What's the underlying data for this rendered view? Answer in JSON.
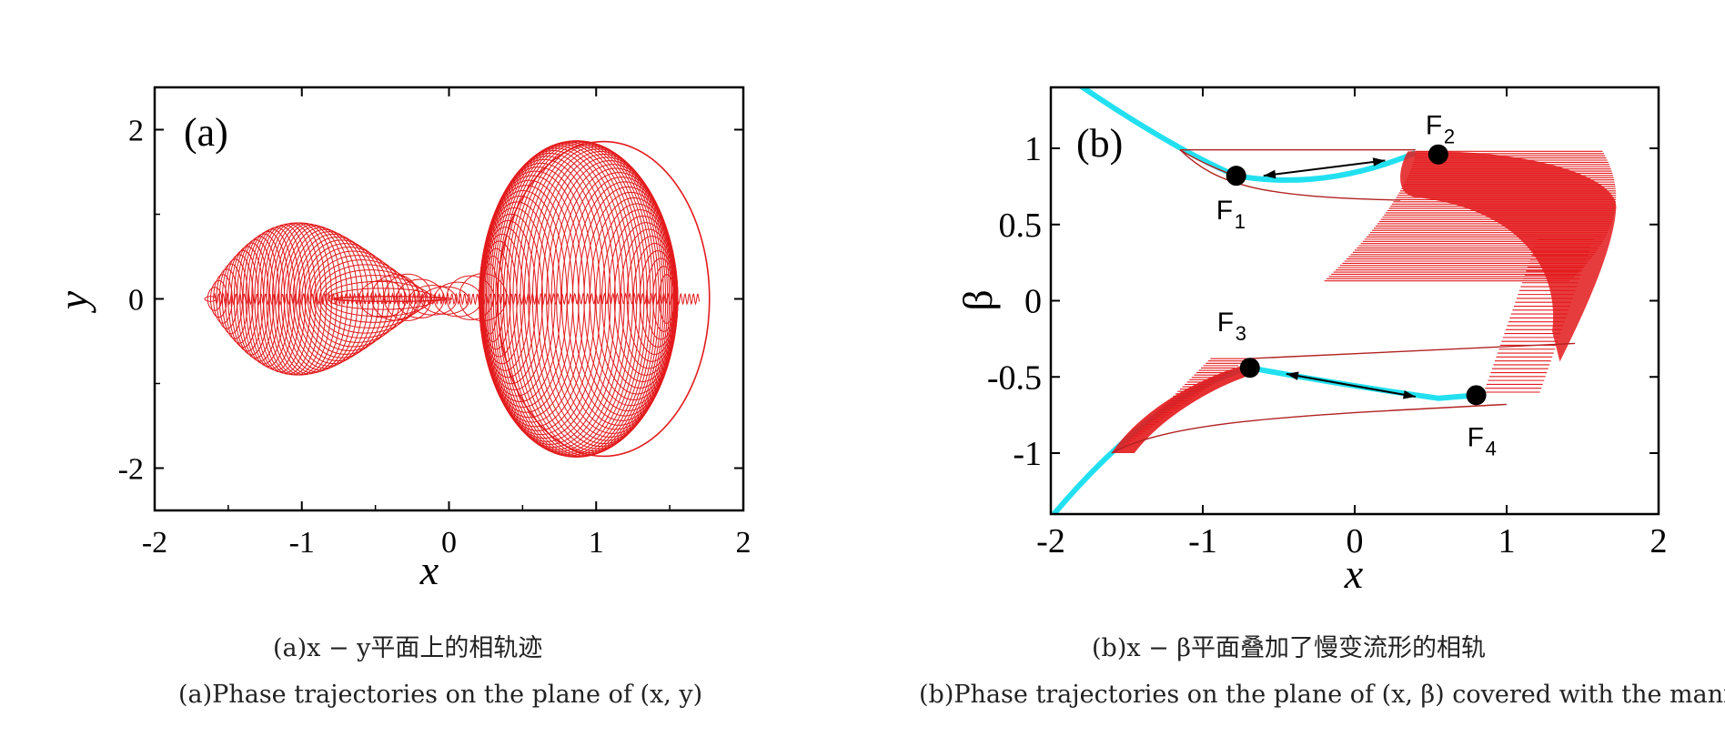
{
  "chart_data": [
    {
      "panel_label": "(a)",
      "type": "line",
      "xlabel": "x",
      "ylabel": "y",
      "xlim": [
        -2,
        2
      ],
      "ylim": [
        -2.5,
        2.5
      ],
      "xticks": [
        "-2",
        "-1",
        "0",
        "1",
        "2"
      ],
      "yticks": [
        "2",
        "0",
        "-2"
      ],
      "grid": false,
      "series_color": "#e31a1c",
      "caption_cn": "(a)x − y平面上的相轨迹",
      "caption_en": "(a)Phase trajectories on the plane of (x, y)",
      "description_regions": [
        {
          "x_range": [
            -1.65,
            -0.45
          ],
          "y_max": 0.87
        },
        {
          "x_range": [
            -0.45,
            0.25
          ],
          "y_max": 0.3
        },
        {
          "x_range": [
            0.25,
            1.75
          ],
          "y_max": 1.87
        }
      ]
    },
    {
      "panel_label": "(b)",
      "type": "line",
      "xlabel": "x",
      "ylabel": "β",
      "xlim": [
        -2,
        2
      ],
      "ylim": [
        -1.4,
        1.4
      ],
      "xticks": [
        "-2",
        "-1",
        "0",
        "1",
        "2"
      ],
      "yticks": [
        "1",
        "0.5",
        "0",
        "-0.5",
        "-1"
      ],
      "grid": false,
      "trajectory_color": "#e31a1c",
      "manifold_color": "#22e0f0",
      "fixed_points": [
        {
          "name": "F",
          "sub": "1",
          "x": -0.78,
          "y": 0.82
        },
        {
          "name": "F",
          "sub": "2",
          "x": 0.55,
          "y": 0.96
        },
        {
          "name": "F",
          "sub": "3",
          "x": -0.69,
          "y": -0.44
        },
        {
          "name": "F",
          "sub": "4",
          "x": 0.8,
          "y": -0.62
        }
      ],
      "caption_cn": "(b)x − β平面叠加了慢变流形的相轨",
      "caption_en": "(b)Phase trajectories on the plane of (x, β) covered with the manifol"
    }
  ]
}
